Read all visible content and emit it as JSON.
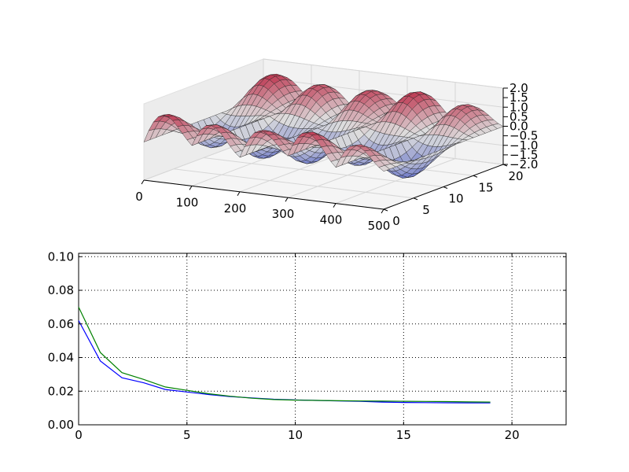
{
  "chart_data": [
    {
      "type": "surface3d",
      "colormap": "coolwarm",
      "x_ticks": [
        "0",
        "100",
        "200",
        "300",
        "400",
        "500"
      ],
      "y_ticks": [
        "0",
        "5",
        "10",
        "15",
        "20"
      ],
      "z_ticks": [
        "−2.0",
        "−1.5",
        "−1.0",
        "−0.5",
        "0.0",
        "0.5",
        "1.0",
        "1.5",
        "2.0"
      ],
      "xlim": [
        0,
        500
      ],
      "ylim": [
        0,
        20
      ],
      "zlim": [
        -2.0,
        2.0
      ],
      "grid": true
    },
    {
      "type": "line",
      "x": [
        0,
        1,
        2,
        3,
        4,
        5,
        6,
        7,
        8,
        9,
        10,
        11,
        12,
        13,
        14,
        15,
        16,
        17,
        18,
        19
      ],
      "series": [
        {
          "color": "#0000ff",
          "values": [
            0.062,
            0.038,
            0.028,
            0.025,
            0.021,
            0.0195,
            0.018,
            0.0168,
            0.016,
            0.0152,
            0.0148,
            0.0145,
            0.0142,
            0.014,
            0.0135,
            0.0133,
            0.0132,
            0.0131,
            0.013,
            0.013
          ]
        },
        {
          "color": "#008000",
          "values": [
            0.07,
            0.043,
            0.031,
            0.027,
            0.0225,
            0.0205,
            0.0185,
            0.017,
            0.0158,
            0.015,
            0.0147,
            0.0145,
            0.0143,
            0.0142,
            0.0141,
            0.014,
            0.0139,
            0.0138,
            0.0136,
            0.0135
          ]
        }
      ],
      "x_ticks": [
        "0",
        "5",
        "10",
        "15",
        "20"
      ],
      "y_ticks": [
        "0.00",
        "0.02",
        "0.04",
        "0.06",
        "0.08",
        "0.10"
      ],
      "xlim": [
        0,
        22.5
      ],
      "ylim": [
        0,
        0.102
      ],
      "grid": true
    }
  ]
}
